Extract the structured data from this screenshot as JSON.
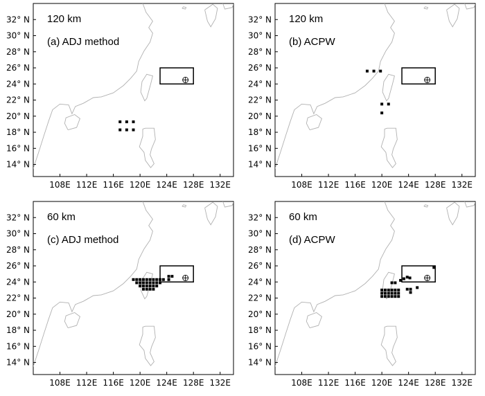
{
  "chart_data": [
    {
      "type": "scatter",
      "title": "120 km",
      "subtitle": "(a)  ADJ method",
      "xlabel": "",
      "ylabel": "",
      "xlim": [
        104,
        134
      ],
      "ylim": [
        12.5,
        34
      ],
      "x_ticks": [
        "108E",
        "112E",
        "116E",
        "120E",
        "124E",
        "128E",
        "132E"
      ],
      "y_ticks": [
        "14° N",
        "16° N",
        "18° N",
        "20° N",
        "22° N",
        "24° N",
        "26° N",
        "28° N",
        "30° N",
        "32° N"
      ],
      "grid": false,
      "box": {
        "lon": [
          123,
          128
        ],
        "lat": [
          24,
          26
        ]
      },
      "target": {
        "lon": 126.8,
        "lat": 24.5
      },
      "points": [
        {
          "x": 117.0,
          "y": 19.3
        },
        {
          "x": 118.0,
          "y": 19.3
        },
        {
          "x": 119.0,
          "y": 19.3
        },
        {
          "x": 117.0,
          "y": 18.3
        },
        {
          "x": 118.0,
          "y": 18.3
        },
        {
          "x": 119.0,
          "y": 18.3
        }
      ]
    },
    {
      "type": "scatter",
      "title": "120 km",
      "subtitle": "(b)  ACPW",
      "xlabel": "",
      "ylabel": "",
      "xlim": [
        104,
        134
      ],
      "ylim": [
        12.5,
        34
      ],
      "x_ticks": [
        "108E",
        "112E",
        "116E",
        "120E",
        "124E",
        "128E",
        "132E"
      ],
      "y_ticks": [
        "14° N",
        "16° N",
        "18° N",
        "20° N",
        "22° N",
        "24° N",
        "26° N",
        "28° N",
        "30° N",
        "32° N"
      ],
      "grid": false,
      "box": {
        "lon": [
          123,
          128
        ],
        "lat": [
          24,
          26
        ]
      },
      "target": {
        "lon": 126.8,
        "lat": 24.5
      },
      "points": [
        {
          "x": 117.8,
          "y": 25.6
        },
        {
          "x": 118.8,
          "y": 25.6
        },
        {
          "x": 119.8,
          "y": 25.6
        },
        {
          "x": 120.0,
          "y": 21.5
        },
        {
          "x": 121.0,
          "y": 21.5
        },
        {
          "x": 120.0,
          "y": 20.4
        }
      ]
    },
    {
      "type": "scatter",
      "title": "60 km",
      "subtitle": "(c)  ADJ method",
      "xlabel": "",
      "ylabel": "",
      "xlim": [
        104,
        134
      ],
      "ylim": [
        12.5,
        34
      ],
      "x_ticks": [
        "108E",
        "112E",
        "116E",
        "120E",
        "124E",
        "128E",
        "132E"
      ],
      "y_ticks": [
        "14° N",
        "16° N",
        "18° N",
        "20° N",
        "22° N",
        "24° N",
        "26° N",
        "28° N",
        "30° N",
        "32° N"
      ],
      "grid": false,
      "box": {
        "lon": [
          123,
          128
        ],
        "lat": [
          24,
          26
        ]
      },
      "target": {
        "lon": 126.8,
        "lat": 24.5
      },
      "points": [
        {
          "x": 119.0,
          "y": 24.3
        },
        {
          "x": 119.5,
          "y": 24.3
        },
        {
          "x": 120.0,
          "y": 24.3
        },
        {
          "x": 120.5,
          "y": 24.3
        },
        {
          "x": 121.0,
          "y": 24.3
        },
        {
          "x": 121.5,
          "y": 24.3
        },
        {
          "x": 122.0,
          "y": 24.3
        },
        {
          "x": 122.5,
          "y": 24.3
        },
        {
          "x": 123.0,
          "y": 24.3
        },
        {
          "x": 123.5,
          "y": 24.3
        },
        {
          "x": 119.5,
          "y": 23.9
        },
        {
          "x": 120.0,
          "y": 23.9
        },
        {
          "x": 120.5,
          "y": 23.9
        },
        {
          "x": 121.0,
          "y": 23.9
        },
        {
          "x": 121.5,
          "y": 23.9
        },
        {
          "x": 122.0,
          "y": 23.9
        },
        {
          "x": 122.5,
          "y": 23.9
        },
        {
          "x": 123.0,
          "y": 23.9
        },
        {
          "x": 120.0,
          "y": 23.5
        },
        {
          "x": 120.5,
          "y": 23.5
        },
        {
          "x": 121.0,
          "y": 23.5
        },
        {
          "x": 121.5,
          "y": 23.5
        },
        {
          "x": 122.0,
          "y": 23.5
        },
        {
          "x": 122.5,
          "y": 23.5
        },
        {
          "x": 120.5,
          "y": 23.1
        },
        {
          "x": 121.0,
          "y": 23.1
        },
        {
          "x": 121.5,
          "y": 23.1
        },
        {
          "x": 122.0,
          "y": 23.1
        },
        {
          "x": 124.3,
          "y": 24.7
        },
        {
          "x": 124.8,
          "y": 24.7
        },
        {
          "x": 124.3,
          "y": 24.3
        }
      ]
    },
    {
      "type": "scatter",
      "title": "60 km",
      "subtitle": "(d)  ACPW",
      "xlabel": "",
      "ylabel": "",
      "xlim": [
        104,
        134
      ],
      "ylim": [
        12.5,
        34
      ],
      "x_ticks": [
        "108E",
        "112E",
        "116E",
        "120E",
        "124E",
        "128E",
        "132E"
      ],
      "y_ticks": [
        "14° N",
        "16° N",
        "18° N",
        "20° N",
        "22° N",
        "24° N",
        "26° N",
        "28° N",
        "30° N",
        "32° N"
      ],
      "grid": false,
      "box": {
        "lon": [
          123,
          128
        ],
        "lat": [
          24,
          26
        ]
      },
      "target": {
        "lon": 126.8,
        "lat": 24.5
      },
      "points": [
        {
          "x": 121.5,
          "y": 23.9
        },
        {
          "x": 122.0,
          "y": 23.9
        },
        {
          "x": 122.8,
          "y": 24.2
        },
        {
          "x": 123.3,
          "y": 24.4
        },
        {
          "x": 123.8,
          "y": 24.6
        },
        {
          "x": 124.2,
          "y": 24.5
        },
        {
          "x": 120.0,
          "y": 23.0
        },
        {
          "x": 120.5,
          "y": 23.0
        },
        {
          "x": 121.0,
          "y": 23.0
        },
        {
          "x": 121.5,
          "y": 23.0
        },
        {
          "x": 122.0,
          "y": 23.0
        },
        {
          "x": 122.5,
          "y": 23.0
        },
        {
          "x": 120.0,
          "y": 22.6
        },
        {
          "x": 120.5,
          "y": 22.6
        },
        {
          "x": 121.0,
          "y": 22.6
        },
        {
          "x": 121.5,
          "y": 22.6
        },
        {
          "x": 122.0,
          "y": 22.6
        },
        {
          "x": 122.5,
          "y": 22.6
        },
        {
          "x": 120.0,
          "y": 22.2
        },
        {
          "x": 120.5,
          "y": 22.2
        },
        {
          "x": 121.0,
          "y": 22.2
        },
        {
          "x": 121.5,
          "y": 22.2
        },
        {
          "x": 122.0,
          "y": 22.2
        },
        {
          "x": 122.5,
          "y": 22.2
        },
        {
          "x": 123.8,
          "y": 23.1
        },
        {
          "x": 124.3,
          "y": 23.1
        },
        {
          "x": 124.3,
          "y": 22.7
        },
        {
          "x": 125.3,
          "y": 23.3
        },
        {
          "x": 127.8,
          "y": 25.8
        }
      ]
    }
  ]
}
